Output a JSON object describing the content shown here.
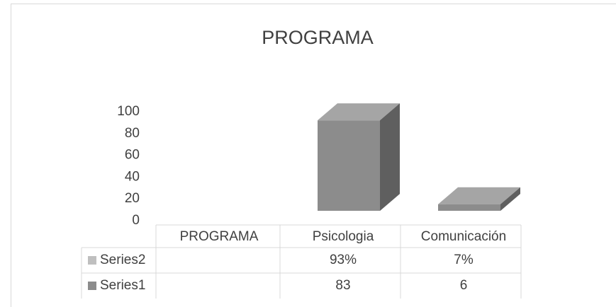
{
  "chart_data": {
    "type": "bar3d",
    "title": "PROGRAMA",
    "categories": [
      "PROGRAMA",
      "Psicologia",
      "Comunicación"
    ],
    "series": [
      {
        "name": "Series2",
        "color": "#bfbfbf",
        "values": [
          null,
          0.93,
          0.07
        ],
        "value_labels": [
          null,
          "93%",
          "7%"
        ]
      },
      {
        "name": "Series1",
        "color": "#8c8c8c",
        "values": [
          null,
          83,
          6
        ]
      }
    ],
    "ylim": [
      0,
      100
    ],
    "yticks": [
      0,
      20,
      40,
      60,
      80,
      100
    ],
    "data_table": true
  }
}
